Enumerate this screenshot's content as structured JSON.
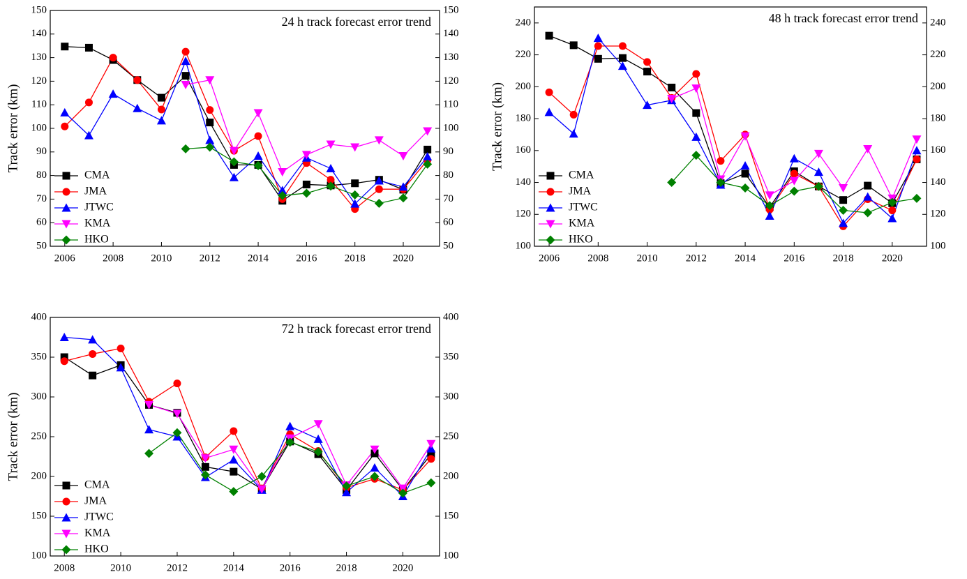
{
  "chart_data": [
    {
      "type": "line",
      "title": "24 h track forecast error trend",
      "y_label": "Track error (km)",
      "x": [
        2006,
        2007,
        2008,
        2009,
        2010,
        2011,
        2012,
        2013,
        2014,
        2015,
        2016,
        2017,
        2018,
        2019,
        2020,
        2021
      ],
      "xlim": [
        2005.4,
        2021.5
      ],
      "xticks": [
        2006,
        2008,
        2010,
        2012,
        2014,
        2016,
        2018,
        2020
      ],
      "ylim": [
        50,
        150
      ],
      "yticks": [
        50,
        60,
        70,
        80,
        90,
        100,
        110,
        120,
        130,
        140,
        150
      ],
      "y2lim": [
        50,
        150
      ],
      "y2ticks": [
        50,
        60,
        70,
        80,
        90,
        100,
        110,
        120,
        130,
        140,
        150
      ],
      "legend": "lower left",
      "series": [
        {
          "name": "CMA",
          "color": "#000000",
          "marker": "square",
          "values": [
            134.7,
            134.2,
            129,
            120.5,
            113,
            122.3,
            102.5,
            84.5,
            84.5,
            69.3,
            76.2,
            75.8,
            76.7,
            78.2,
            74,
            91
          ]
        },
        {
          "name": "JMA",
          "color": "#ff0000",
          "marker": "circle",
          "values": [
            100.8,
            111,
            130,
            120.5,
            108,
            132.5,
            107.8,
            90.5,
            96.7,
            70,
            85.3,
            78.2,
            65.8,
            74.2,
            74.2,
            86.5
          ]
        },
        {
          "name": "JTWC",
          "color": "#0000ff",
          "marker": "triangle-up",
          "values": [
            106.7,
            97,
            114.6,
            108.5,
            103.3,
            128.5,
            95,
            79.2,
            88.3,
            73.7,
            87.5,
            83,
            68,
            77.8,
            75.2,
            88
          ]
        },
        {
          "name": "KMA",
          "color": "#ff00ff",
          "marker": "triangle-down",
          "values": [
            null,
            null,
            null,
            null,
            null,
            118.5,
            120.5,
            90.5,
            106.5,
            81.5,
            88.8,
            93.2,
            92,
            95,
            88.3,
            98.8
          ]
        },
        {
          "name": "HKO",
          "color": "#008000",
          "marker": "diamond",
          "values": [
            null,
            null,
            null,
            null,
            null,
            91.3,
            92,
            85.8,
            84.2,
            71.5,
            72.5,
            75.5,
            71.8,
            68.2,
            70.5,
            84.8
          ]
        }
      ]
    },
    {
      "type": "line",
      "title": "48 h track forecast error trend",
      "y_label": "Track error (km)",
      "x": [
        2006,
        2007,
        2008,
        2009,
        2010,
        2011,
        2012,
        2013,
        2014,
        2015,
        2016,
        2017,
        2018,
        2019,
        2020,
        2021
      ],
      "xlim": [
        2005.4,
        2021.4
      ],
      "xticks": [
        2006,
        2008,
        2010,
        2012,
        2014,
        2016,
        2018,
        2020
      ],
      "ylim": [
        100,
        250
      ],
      "yticks": [
        100,
        120,
        140,
        160,
        180,
        200,
        220,
        240
      ],
      "y2lim": [
        100,
        250
      ],
      "y2ticks": [
        100,
        120,
        140,
        160,
        180,
        200,
        220,
        240
      ],
      "legend": "lower left",
      "series": [
        {
          "name": "CMA",
          "color": "#000000",
          "marker": "square",
          "values": [
            232,
            226,
            217.5,
            218,
            209.5,
            199.5,
            183.5,
            139.5,
            145.5,
            124.5,
            147,
            137.5,
            129,
            138,
            127,
            154.5
          ]
        },
        {
          "name": "JMA",
          "color": "#ff0000",
          "marker": "circle",
          "values": [
            196.5,
            182.5,
            225.5,
            225.5,
            215.5,
            193,
            208,
            153.5,
            170,
            123,
            145.5,
            137.5,
            112.5,
            129.5,
            122.5,
            154.5
          ]
        },
        {
          "name": "JTWC",
          "color": "#0000ff",
          "marker": "triangle-up",
          "values": [
            184,
            170.5,
            230.5,
            213,
            188.5,
            191.5,
            168.5,
            138.5,
            150.5,
            119,
            155,
            146.5,
            114.5,
            131,
            117.5,
            160
          ]
        },
        {
          "name": "KMA",
          "color": "#ff00ff",
          "marker": "triangle-down",
          "values": [
            null,
            null,
            null,
            null,
            null,
            192.5,
            199,
            142,
            169,
            132,
            141,
            158,
            136.5,
            161,
            130,
            167
          ]
        },
        {
          "name": "HKO",
          "color": "#008000",
          "marker": "diamond",
          "values": [
            null,
            null,
            null,
            null,
            null,
            140,
            157,
            140,
            136.5,
            125.5,
            134.5,
            137.5,
            122.5,
            121,
            127.5,
            130
          ]
        }
      ]
    },
    {
      "type": "line",
      "title": "72 h track forecast error trend",
      "y_label": "Track error (km)",
      "x": [
        2008,
        2009,
        2010,
        2011,
        2012,
        2013,
        2014,
        2015,
        2016,
        2017,
        2018,
        2019,
        2020,
        2021
      ],
      "xlim": [
        2007.5,
        2021.3
      ],
      "xticks": [
        2008,
        2010,
        2012,
        2014,
        2016,
        2018,
        2020
      ],
      "ylim": [
        100,
        400
      ],
      "yticks": [
        100,
        150,
        200,
        250,
        300,
        350,
        400
      ],
      "y2lim": [
        100,
        400
      ],
      "y2ticks": [
        100,
        150,
        200,
        250,
        300,
        350,
        400
      ],
      "legend": "lower left",
      "series": [
        {
          "name": "CMA",
          "color": "#000000",
          "marker": "square",
          "values": [
            350,
            327,
            340,
            290,
            280,
            212,
            206,
            184,
            244,
            228,
            183,
            229,
            183,
            228
          ]
        },
        {
          "name": "JMA",
          "color": "#ff0000",
          "marker": "circle",
          "values": [
            345,
            354,
            361,
            294,
            317,
            224,
            257,
            185,
            253,
            232,
            186,
            197,
            183,
            222
          ]
        },
        {
          "name": "JTWC",
          "color": "#0000ff",
          "marker": "triangle-up",
          "values": [
            375,
            372,
            337,
            259,
            250,
            199,
            221,
            183,
            263,
            247,
            180,
            211,
            175,
            235
          ]
        },
        {
          "name": "KMA",
          "color": "#ff00ff",
          "marker": "triangle-down",
          "values": [
            null,
            null,
            null,
            290,
            279,
            223,
            234,
            184,
            248,
            266,
            189,
            234,
            185,
            241
          ]
        },
        {
          "name": "HKO",
          "color": "#008000",
          "marker": "diamond",
          "values": [
            null,
            null,
            null,
            229,
            255,
            202,
            181,
            200,
            243,
            231,
            188,
            200,
            179,
            192
          ]
        }
      ]
    }
  ]
}
